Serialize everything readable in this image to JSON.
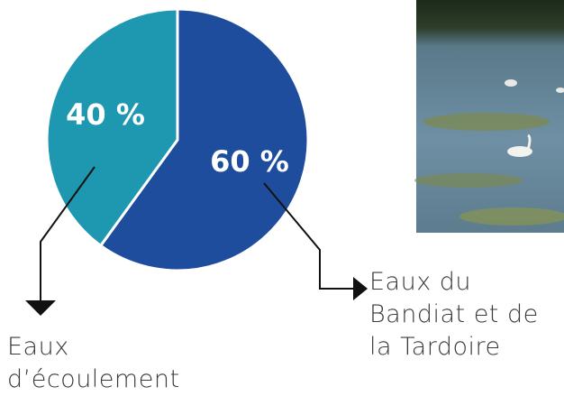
{
  "chart_data": {
    "type": "pie",
    "categories": [
      "Eaux du Bandiat et de la Tardoire",
      "Eaux d’écoulement"
    ],
    "values": [
      60,
      40
    ],
    "value_labels": [
      "60 %",
      "40 %"
    ],
    "colors": [
      "#1f4d9e",
      "#1e97b0"
    ]
  }
}
